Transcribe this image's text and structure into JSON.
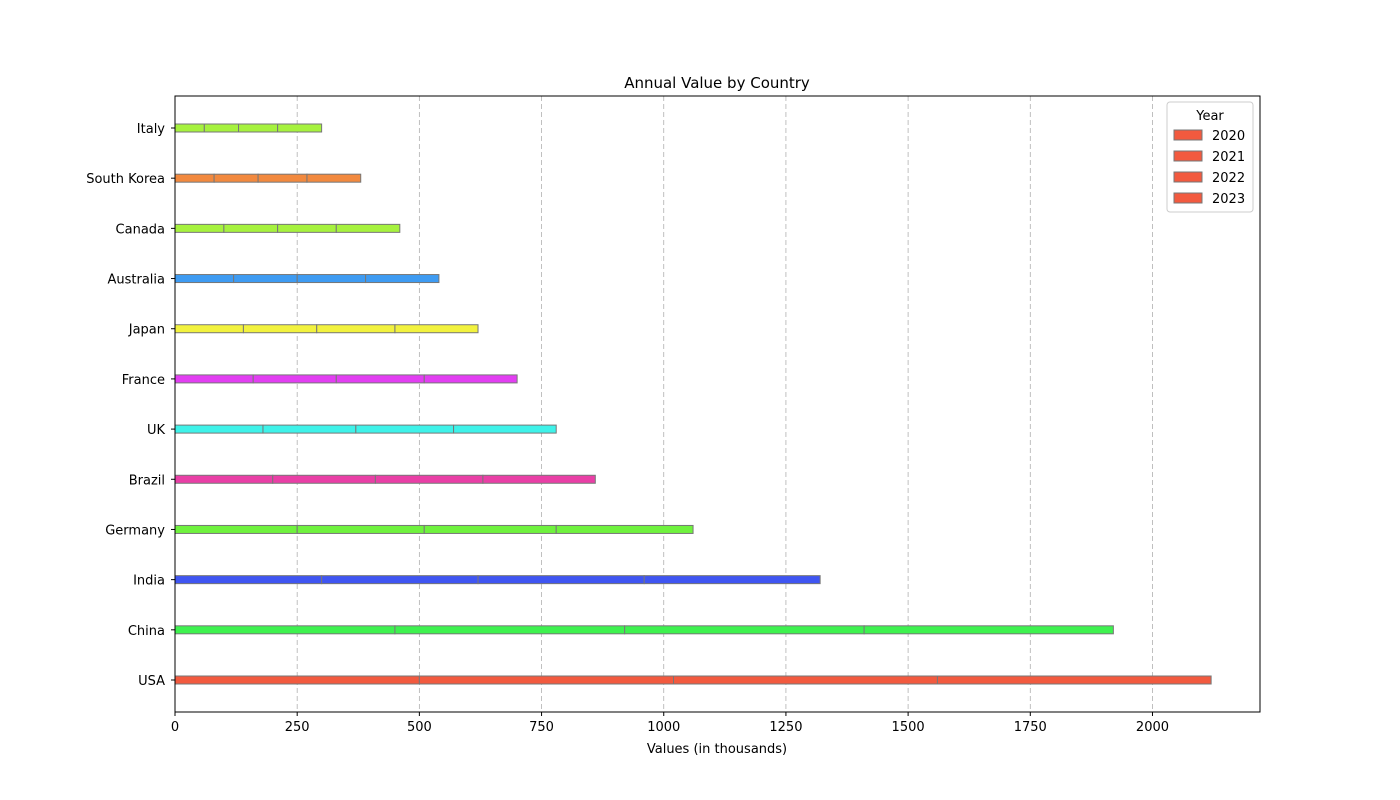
{
  "chart_data": {
    "type": "bar",
    "orientation": "horizontal",
    "stacked": true,
    "title": "Annual Value by Country",
    "xlabel": "Values (in thousands)",
    "ylabel": "",
    "xlim": [
      0,
      2220
    ],
    "xticks": [
      0,
      250,
      500,
      750,
      1000,
      1250,
      1500,
      1750,
      2000
    ],
    "grid": {
      "x": true,
      "y": false,
      "style": "dashed"
    },
    "legend": {
      "title": "Year",
      "placement": "top-right",
      "color": "#f25a3f"
    },
    "categories": [
      "USA",
      "China",
      "India",
      "Germany",
      "Brazil",
      "UK",
      "France",
      "Japan",
      "Australia",
      "Canada",
      "South Korea",
      "Italy"
    ],
    "colors": [
      "#f25a3f",
      "#3ef24f",
      "#3f55f2",
      "#6ff23e",
      "#e93fa6",
      "#3ef2e9",
      "#e23ef2",
      "#f2f23e",
      "#3e9bf2",
      "#a6f23e",
      "#f2893e",
      "#a6f23e"
    ],
    "series": [
      {
        "name": "2020",
        "values": [
          500,
          450,
          300,
          250,
          200,
          180,
          160,
          140,
          120,
          100,
          80,
          60
        ]
      },
      {
        "name": "2021",
        "values": [
          520,
          470,
          320,
          260,
          210,
          190,
          170,
          150,
          130,
          110,
          90,
          70
        ]
      },
      {
        "name": "2022",
        "values": [
          540,
          490,
          340,
          270,
          220,
          200,
          180,
          160,
          140,
          120,
          100,
          80
        ]
      },
      {
        "name": "2023",
        "values": [
          560,
          510,
          360,
          280,
          230,
          210,
          190,
          170,
          150,
          130,
          110,
          90
        ]
      }
    ]
  }
}
